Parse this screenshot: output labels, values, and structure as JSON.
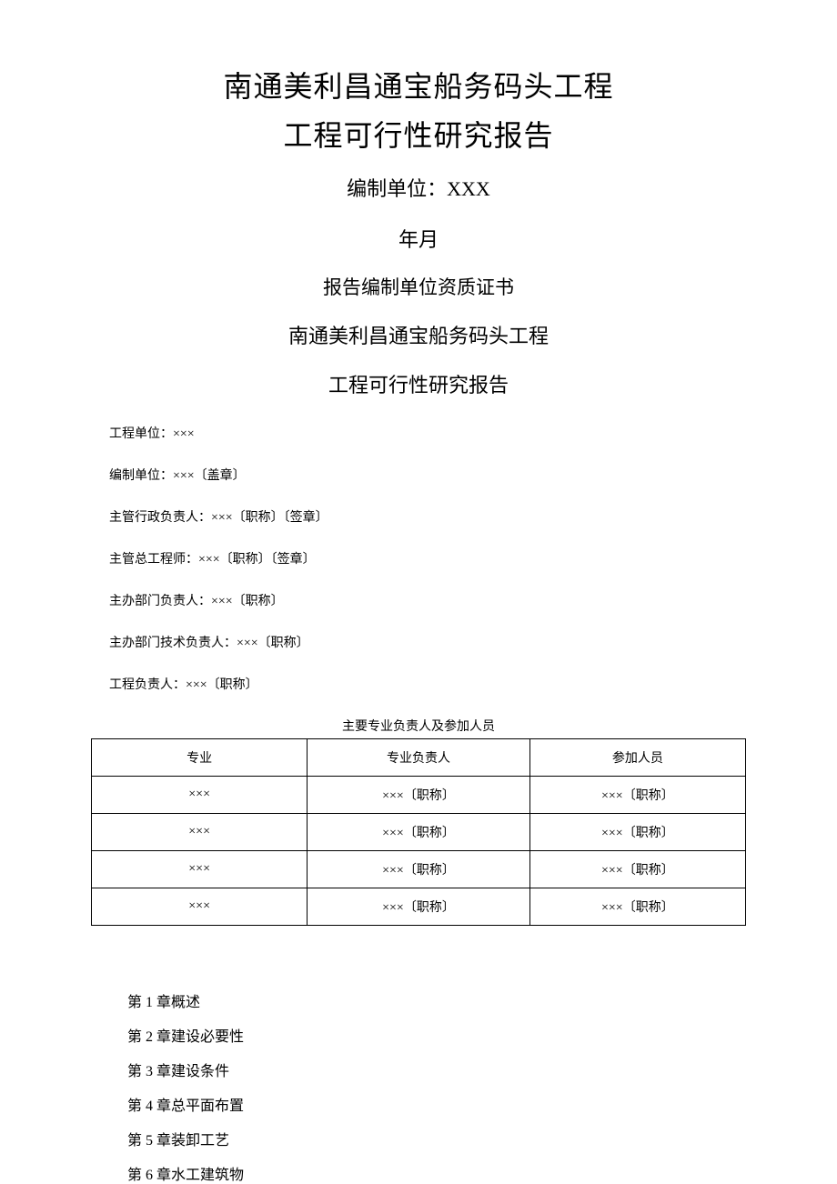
{
  "title": {
    "line1": "南通美利昌通宝船务码头工程",
    "line2": "工程可行性研究报告"
  },
  "compiler_label": "编制单位：XXX",
  "date_line": "年月",
  "cert_line": "报告编制单位资质证书",
  "sub_title_1": "南通美利昌通宝船务码头工程",
  "sub_title_2": "工程可行性研究报告",
  "info_lines": {
    "line1": "工程单位：×××",
    "line2": "编制单位：×××〔盖章〕",
    "line3": "主管行政负责人：×××〔职称〕〔签章〕",
    "line4": "主管总工程师：×××〔职称〕〔签章〕",
    "line5": "主办部门负责人：×××〔职称〕",
    "line6": "主办部门技术负责人：×××〔职称〕",
    "line7": "工程负责人：×××〔职称〕"
  },
  "table": {
    "caption": "主要专业负责人及参加人员",
    "columns": [
      "专业",
      "专业负责人",
      "参加人员"
    ],
    "rows": [
      [
        "×××",
        "×××〔职称〕",
        "×××〔职称〕"
      ],
      [
        "×××",
        "×××〔职称〕",
        "×××〔职称〕"
      ],
      [
        "×××",
        "×××〔职称〕",
        "×××〔职称〕"
      ],
      [
        "×××",
        "×××〔职称〕",
        "×××〔职称〕"
      ]
    ]
  },
  "chapters": {
    "c1": "第 1 章概述",
    "c2": "第 2 章建设必要性",
    "c3": "第 3 章建设条件",
    "c4": "第 4 章总平面布置",
    "c5": "第 5 章装卸工艺",
    "c6": "第 6 章水工建筑物"
  },
  "styling": {
    "background_color": "#ffffff",
    "text_color": "#000000",
    "border_color": "#000000",
    "title_fontsize": 32,
    "subtitle_fontsize": 22,
    "body_fontsize": 14,
    "chapter_fontsize": 16,
    "font_family": "SimSun"
  }
}
